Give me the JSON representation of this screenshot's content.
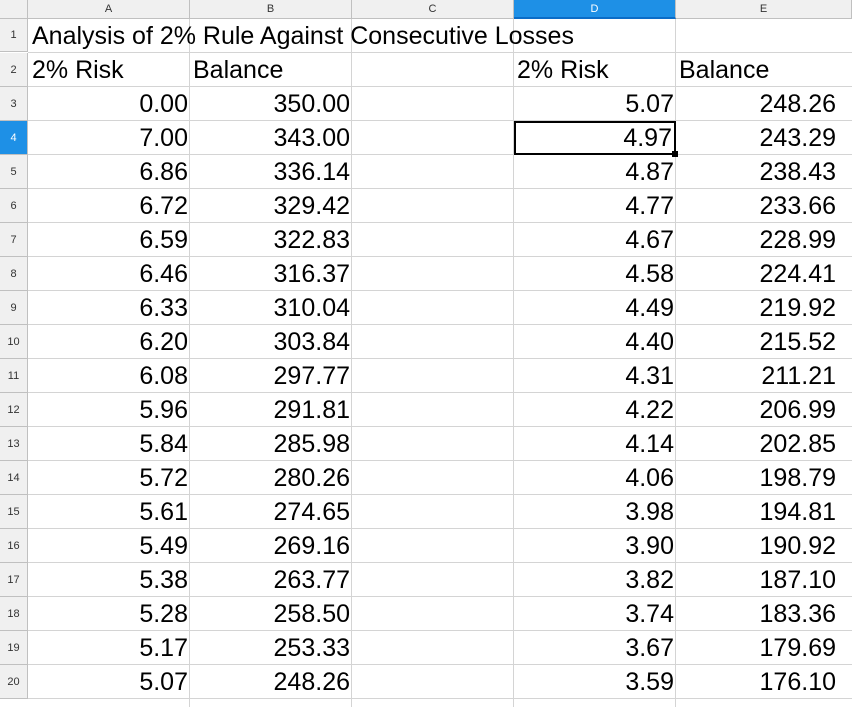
{
  "columns": [
    "A",
    "B",
    "C",
    "D",
    "E"
  ],
  "selected_column": "D",
  "selected_row": "4",
  "row_headers": [
    "1",
    "2",
    "3",
    "4",
    "5",
    "6",
    "7",
    "8",
    "9",
    "10",
    "11",
    "12",
    "13",
    "14",
    "15",
    "16",
    "17",
    "18",
    "19",
    "20"
  ],
  "sheet": {
    "title": "Analysis of 2% Rule Against Consecutive Losses",
    "headers": {
      "a": "2% Risk",
      "b": "Balance",
      "d": "2% Risk",
      "e": "Balance"
    },
    "left_table": [
      {
        "risk": "0.00",
        "balance": "350.00"
      },
      {
        "risk": "7.00",
        "balance": "343.00"
      },
      {
        "risk": "6.86",
        "balance": "336.14"
      },
      {
        "risk": "6.72",
        "balance": "329.42"
      },
      {
        "risk": "6.59",
        "balance": "322.83"
      },
      {
        "risk": "6.46",
        "balance": "316.37"
      },
      {
        "risk": "6.33",
        "balance": "310.04"
      },
      {
        "risk": "6.20",
        "balance": "303.84"
      },
      {
        "risk": "6.08",
        "balance": "297.77"
      },
      {
        "risk": "5.96",
        "balance": "291.81"
      },
      {
        "risk": "5.84",
        "balance": "285.98"
      },
      {
        "risk": "5.72",
        "balance": "280.26"
      },
      {
        "risk": "5.61",
        "balance": "274.65"
      },
      {
        "risk": "5.49",
        "balance": "269.16"
      },
      {
        "risk": "5.38",
        "balance": "263.77"
      },
      {
        "risk": "5.28",
        "balance": "258.50"
      },
      {
        "risk": "5.17",
        "balance": "253.33"
      },
      {
        "risk": "5.07",
        "balance": "248.26"
      }
    ],
    "right_table": [
      {
        "risk": "5.07",
        "balance": "248.26"
      },
      {
        "risk": "4.97",
        "balance": "243.29"
      },
      {
        "risk": "4.87",
        "balance": "238.43"
      },
      {
        "risk": "4.77",
        "balance": "233.66"
      },
      {
        "risk": "4.67",
        "balance": "228.99"
      },
      {
        "risk": "4.58",
        "balance": "224.41"
      },
      {
        "risk": "4.49",
        "balance": "219.92"
      },
      {
        "risk": "4.40",
        "balance": "215.52"
      },
      {
        "risk": "4.31",
        "balance": "211.21"
      },
      {
        "risk": "4.22",
        "balance": "206.99"
      },
      {
        "risk": "4.14",
        "balance": "202.85"
      },
      {
        "risk": "4.06",
        "balance": "198.79"
      },
      {
        "risk": "3.98",
        "balance": "194.81"
      },
      {
        "risk": "3.90",
        "balance": "190.92"
      },
      {
        "risk": "3.82",
        "balance": "187.10"
      },
      {
        "risk": "3.74",
        "balance": "183.36"
      },
      {
        "risk": "3.67",
        "balance": "179.69"
      },
      {
        "risk": "3.59",
        "balance": "176.10"
      }
    ]
  }
}
